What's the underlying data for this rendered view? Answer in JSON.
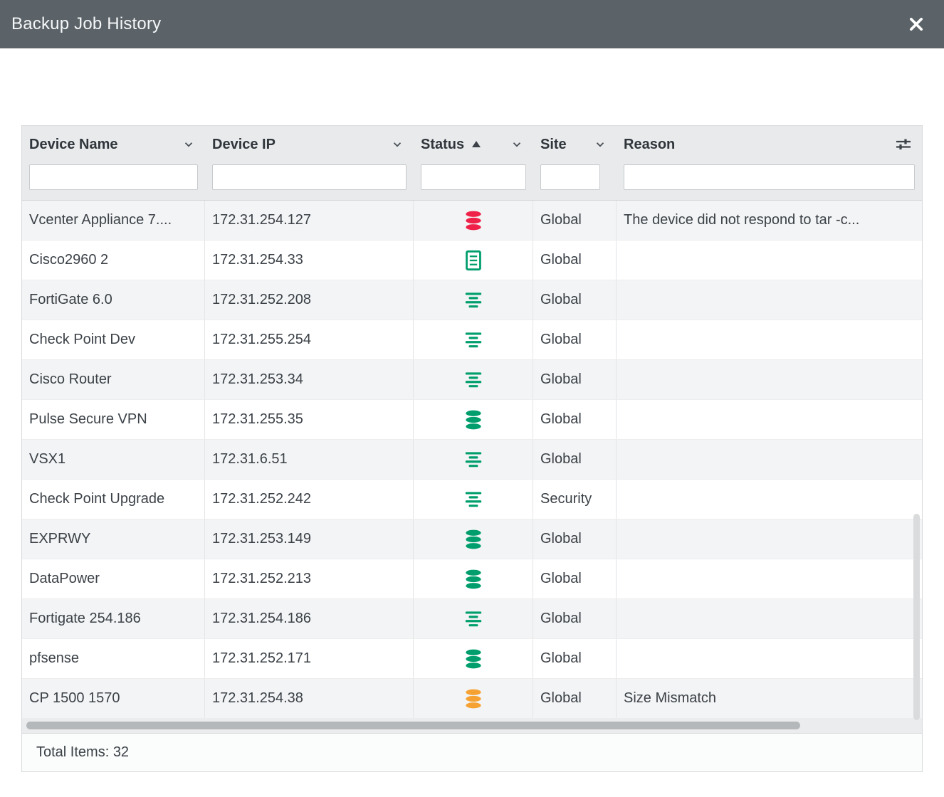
{
  "window": {
    "title": "Backup Job History"
  },
  "table": {
    "columns": [
      {
        "id": "device_name",
        "label": "Device Name"
      },
      {
        "id": "device_ip",
        "label": "Device IP"
      },
      {
        "id": "status",
        "label": "Status",
        "sorted": "asc"
      },
      {
        "id": "site",
        "label": "Site"
      },
      {
        "id": "reason",
        "label": "Reason"
      }
    ],
    "filters": {
      "device_name": "",
      "device_ip": "",
      "status": "",
      "site": "",
      "reason": ""
    },
    "rows": [
      {
        "device_name": "Vcenter Appliance 7....",
        "device_ip": "172.31.254.127",
        "status_icon": "database-error-icon",
        "site": "Global",
        "reason": "The device did not respond to tar -c..."
      },
      {
        "device_name": "Cisco2960 2",
        "device_ip": "172.31.254.33",
        "status_icon": "document-success-icon",
        "site": "Global",
        "reason": ""
      },
      {
        "device_name": "FortiGate 6.0",
        "device_ip": "172.31.252.208",
        "status_icon": "config-lines-success-icon",
        "site": "Global",
        "reason": ""
      },
      {
        "device_name": "Check Point Dev",
        "device_ip": "172.31.255.254",
        "status_icon": "config-lines-success-icon",
        "site": "Global",
        "reason": ""
      },
      {
        "device_name": "Cisco Router",
        "device_ip": "172.31.253.34",
        "status_icon": "config-lines-success-icon",
        "site": "Global",
        "reason": ""
      },
      {
        "device_name": "Pulse Secure VPN",
        "device_ip": "172.31.255.35",
        "status_icon": "database-success-icon",
        "site": "Global",
        "reason": ""
      },
      {
        "device_name": "VSX1",
        "device_ip": "172.31.6.51",
        "status_icon": "config-lines-success-icon",
        "site": "Global",
        "reason": ""
      },
      {
        "device_name": "Check Point Upgrade",
        "device_ip": "172.31.252.242",
        "status_icon": "config-lines-success-icon",
        "site": "Security",
        "reason": ""
      },
      {
        "device_name": "EXPRWY",
        "device_ip": "172.31.253.149",
        "status_icon": "database-success-icon",
        "site": "Global",
        "reason": ""
      },
      {
        "device_name": "DataPower",
        "device_ip": "172.31.252.213",
        "status_icon": "database-success-icon",
        "site": "Global",
        "reason": ""
      },
      {
        "device_name": "Fortigate 254.186",
        "device_ip": "172.31.254.186",
        "status_icon": "config-lines-success-icon",
        "site": "Global",
        "reason": ""
      },
      {
        "device_name": "pfsense",
        "device_ip": "172.31.252.171",
        "status_icon": "database-success-icon",
        "site": "Global",
        "reason": ""
      },
      {
        "device_name": "CP 1500 1570",
        "device_ip": "172.31.254.38",
        "status_icon": "database-warning-icon",
        "site": "Global",
        "reason": "Size Mismatch"
      }
    ],
    "footer": {
      "total_items": "Total Items: 32"
    }
  },
  "colors": {
    "titlebar": "#5b6369",
    "error": "#ef2148",
    "success": "#009e6c",
    "warning": "#f5a233"
  }
}
